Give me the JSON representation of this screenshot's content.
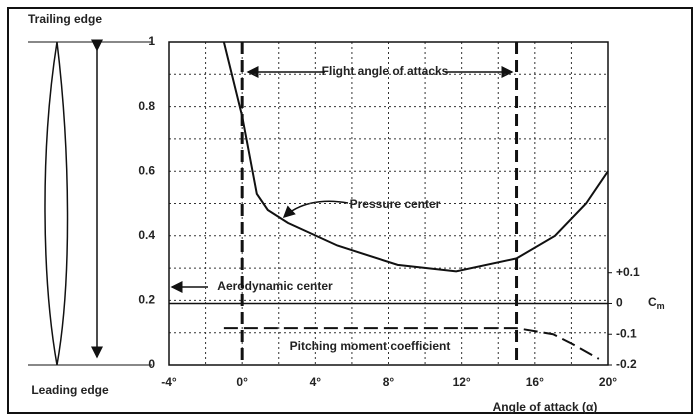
{
  "chart_data": {
    "type": "line",
    "xlabel": "Angle of attack (α)",
    "y2label": {
      "base": "C",
      "sub": "m"
    },
    "xlim": [
      -4,
      20
    ],
    "ylim": [
      0,
      1
    ],
    "y2lim": [
      -0.2,
      0.85
    ],
    "xticks": [
      {
        "value": -4,
        "label": "-4°"
      },
      {
        "value": 0,
        "label": "0°"
      },
      {
        "value": 4,
        "label": "4°"
      },
      {
        "value": 8,
        "label": "8°"
      },
      {
        "value": 12,
        "label": "12°"
      },
      {
        "value": 16,
        "label": "16°"
      },
      {
        "value": 20,
        "label": "20°"
      }
    ],
    "yticks": [
      0,
      0.2,
      0.4,
      0.6,
      0.8,
      1
    ],
    "y2ticks": [
      -0.2,
      -0.1,
      0,
      {
        "value": 0.1,
        "label": "+0.1"
      }
    ],
    "minor_xticks": [
      -2,
      2,
      6,
      10,
      14,
      18
    ],
    "minor_yticks": [
      0.1,
      0.3,
      0.5,
      0.7,
      0.9
    ],
    "grid": true,
    "series": [
      {
        "color": "#111",
        "dash": false,
        "x": [
          -1,
          0,
          0.8,
          1.4,
          2.5,
          5.2,
          8.5,
          11.7,
          15,
          17.1,
          18.8,
          20
        ],
        "values": [
          1.0,
          0.77,
          0.53,
          0.48,
          0.44,
          0.37,
          0.31,
          0.29,
          0.33,
          0.4,
          0.5,
          0.6
        ]
      },
      {
        "color": "#111",
        "dash": true,
        "axis": "y2",
        "x": [
          -1,
          15,
          17,
          18,
          19.5
        ],
        "values": [
          -0.08,
          -0.08,
          -0.1,
          -0.13,
          -0.18
        ]
      }
    ],
    "flight_range": [
      0,
      15
    ],
    "aerodynamic_center_y2": 0,
    "annotations": {
      "flight": "Flight angle of attacks",
      "pressure": "Pressure center",
      "aero": "Aerodynamic center",
      "moment": "Pitching moment coefficient",
      "trailing": "Trailing edge",
      "leading": "Leading edge"
    }
  }
}
